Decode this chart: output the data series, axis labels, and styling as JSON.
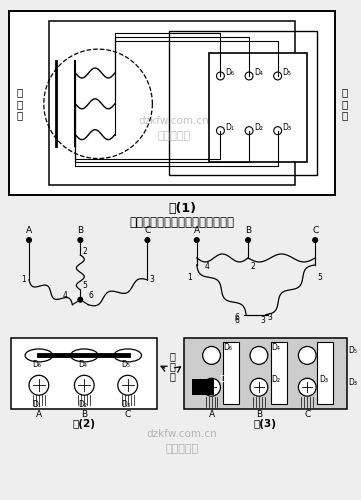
{
  "bg_color": "#eeeeee",
  "title_caption": "图(1)",
  "subtitle": "三相异步电动机接线图及接线方式",
  "fig2_caption": "图(2)",
  "fig3_caption": "图(3)",
  "watermark1": "dzkfw.com.cn",
  "watermark2": "电子开发网",
  "motor_label": "电\n动\n机",
  "terminal_label": "接\n线\n板",
  "D_labels_top": [
    "D₆",
    "D₄",
    "D₅"
  ],
  "D_labels_bot": [
    "D₁",
    "D₂",
    "D₃"
  ]
}
